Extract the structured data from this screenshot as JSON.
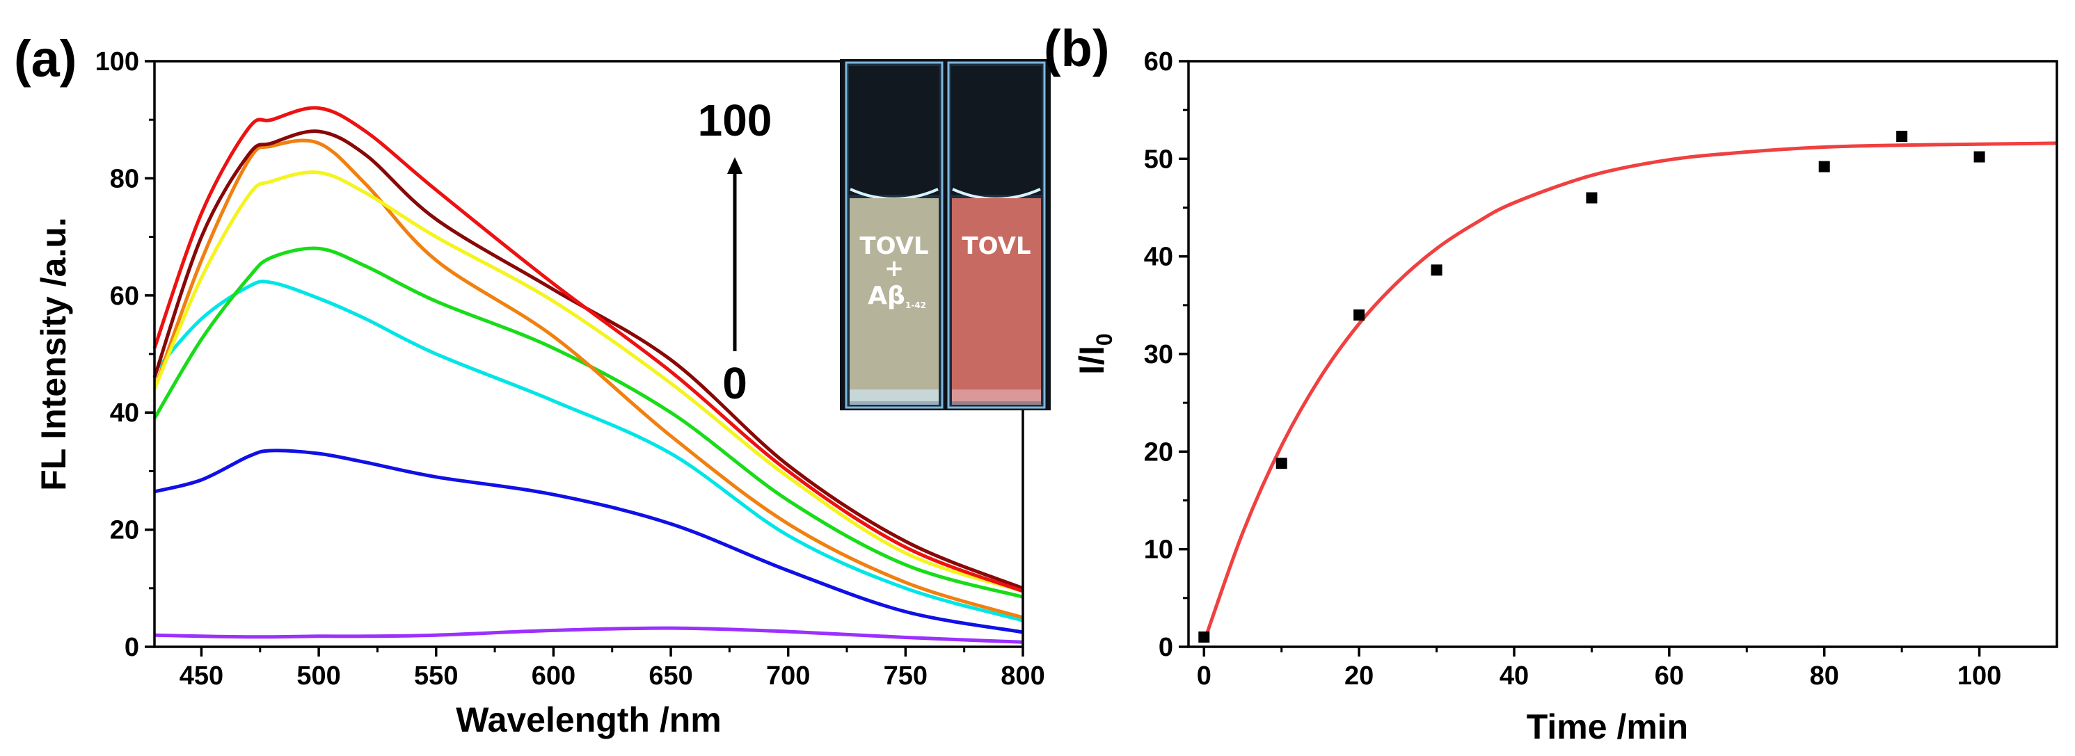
{
  "panels": {
    "a": {
      "label": "(a)"
    },
    "b": {
      "label": "(b)"
    }
  },
  "inset": {
    "arrow_top_label": "100",
    "arrow_bottom_label": "0",
    "cuvette_left_line1": "TOVL",
    "cuvette_left_line2": "+",
    "cuvette_left_line3": "Aβ",
    "cuvette_left_subscript": "1-42",
    "cuvette_right_label": "TOVL",
    "colors": {
      "left_solution": "#b5b39a",
      "right_solution": "#c76a62",
      "background": "#0d1218"
    }
  },
  "chart_data": [
    {
      "type": "line",
      "panel": "(a)",
      "xlabel": "Wavelength /nm",
      "ylabel": "FL Intensity /a.u.",
      "xlim": [
        430,
        800
      ],
      "ylim": [
        0,
        100
      ],
      "xticks": [
        450,
        500,
        550,
        600,
        650,
        700,
        750,
        800
      ],
      "yticks": [
        0,
        20,
        40,
        60,
        80,
        100
      ],
      "grid": false,
      "x": [
        430,
        450,
        470,
        480,
        500,
        520,
        550,
        600,
        650,
        700,
        750,
        800
      ],
      "series": [
        {
          "color": "#9b30ff",
          "values": [
            2,
            1.8,
            1.7,
            1.7,
            1.8,
            1.8,
            2,
            2.8,
            3.2,
            2.6,
            1.6,
            0.8
          ]
        },
        {
          "color": "#1010e6",
          "values": [
            26.5,
            28.5,
            32.5,
            33.5,
            33,
            31.5,
            29,
            26,
            21,
            13,
            6,
            2.5
          ]
        },
        {
          "color": "#00e5e5",
          "values": [
            47,
            56,
            61.5,
            62.2,
            59.5,
            56,
            50,
            42,
            33,
            19,
            10,
            4.5
          ]
        },
        {
          "color": "#18dc18",
          "values": [
            39,
            52.5,
            63,
            66.5,
            68,
            65,
            59,
            51,
            40,
            25,
            14,
            8.5
          ]
        },
        {
          "color": "#f08010",
          "values": [
            44,
            66,
            83,
            85.5,
            86,
            79,
            66,
            53,
            36,
            21,
            11,
            5
          ]
        },
        {
          "color": "#f4f41e",
          "values": [
            44,
            63,
            77,
            79.5,
            81,
            77.5,
            70,
            59,
            45,
            29,
            16,
            9.5
          ]
        },
        {
          "color": "#880808",
          "values": [
            46,
            70,
            84,
            86,
            88,
            84,
            73,
            61,
            49,
            31,
            18,
            10
          ]
        },
        {
          "color": "#ee1111",
          "values": [
            51,
            74,
            88.5,
            90,
            92,
            88,
            78,
            62,
            47,
            30,
            17,
            9.5
          ]
        }
      ]
    },
    {
      "type": "scatter",
      "panel": "(b)",
      "xlabel": "Time /min",
      "ylabel": "I/I",
      "ylabel_subscript": "0",
      "xlim": [
        -2,
        110
      ],
      "ylim": [
        0,
        60
      ],
      "xticks": [
        0,
        20,
        40,
        60,
        80,
        100
      ],
      "yticks": [
        0,
        10,
        20,
        30,
        40,
        50,
        60
      ],
      "grid": false,
      "points": {
        "color": "#000000",
        "x": [
          0,
          10,
          20,
          30,
          50,
          80,
          90,
          100
        ],
        "y": [
          1,
          18.8,
          34,
          38.6,
          46,
          49.2,
          52.3,
          50.2
        ]
      },
      "fit": {
        "color": "#f04040",
        "x": [
          0,
          5,
          10,
          15,
          20,
          25,
          30,
          35,
          40,
          50,
          60,
          70,
          80,
          90,
          100,
          110
        ],
        "y": [
          0.5,
          11.7,
          20.6,
          27.6,
          33.1,
          37.4,
          40.8,
          43.4,
          45.5,
          48.3,
          49.9,
          50.7,
          51.2,
          51.4,
          51.5,
          51.6
        ]
      }
    }
  ]
}
